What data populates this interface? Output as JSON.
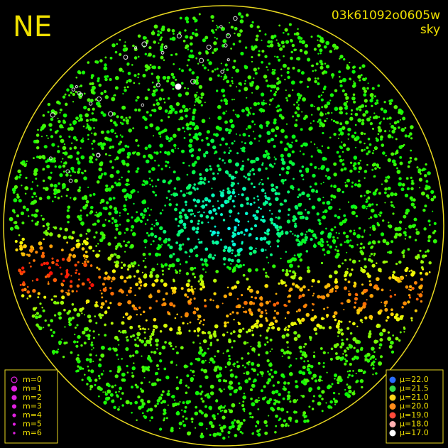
{
  "header": {
    "direction": "NE",
    "frame_id": "03k61092o0605w",
    "mode": "sky"
  },
  "magnitude_legend": [
    "m=0",
    "m=1",
    "m=2",
    "m=3",
    "m=4",
    "m=5",
    "m=6"
  ],
  "brightness_legend": [
    {
      "label": "μ=22.0",
      "color": "#2a6cff"
    },
    {
      "label": "μ=21.5",
      "color": "#33dd44"
    },
    {
      "label": "μ=21.0",
      "color": "#ffd21a"
    },
    {
      "label": "μ=20.0",
      "color": "#ff8c1a"
    },
    {
      "label": "μ=19.0",
      "color": "#ff4a3a"
    },
    {
      "label": "μ=18.0",
      "color": "#ffb0b0"
    },
    {
      "label": "μ=17.0",
      "color": "#ffffff"
    }
  ]
}
